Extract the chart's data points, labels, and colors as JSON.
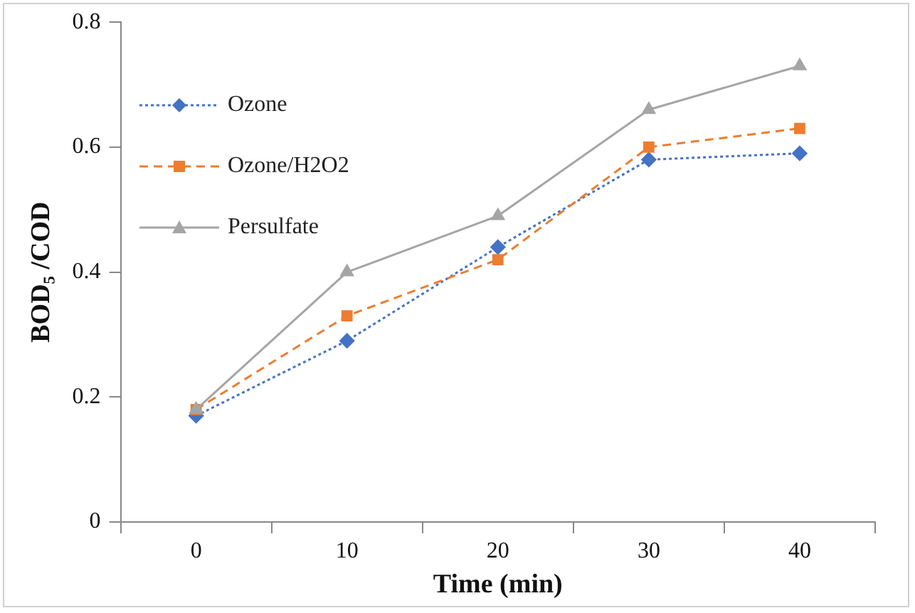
{
  "chart_data": {
    "type": "line",
    "xlabel": "Time (min)",
    "ylabel": "BOD₅ /COD",
    "categories": [
      "0",
      "10",
      "20",
      "30",
      "40"
    ],
    "series": [
      {
        "name": "Ozone",
        "color": "#4472c4",
        "values": [
          0.17,
          0.29,
          0.44,
          0.58,
          0.59
        ],
        "marker": "diamond",
        "line_style": "dotted"
      },
      {
        "name": "Ozone/H2O2",
        "color": "#ed7d31",
        "values": [
          0.18,
          0.33,
          0.42,
          0.6,
          0.63
        ],
        "marker": "square",
        "line_style": "dashed"
      },
      {
        "name": "Persulfate",
        "color": "#a5a5a5",
        "values": [
          0.18,
          0.4,
          0.49,
          0.66,
          0.73
        ],
        "marker": "triangle",
        "line_style": "solid"
      }
    ],
    "ylim": [
      0,
      0.8
    ],
    "yticks": [
      0,
      0.2,
      0.4,
      0.6,
      0.8
    ],
    "grid": false,
    "legend": "top left"
  }
}
